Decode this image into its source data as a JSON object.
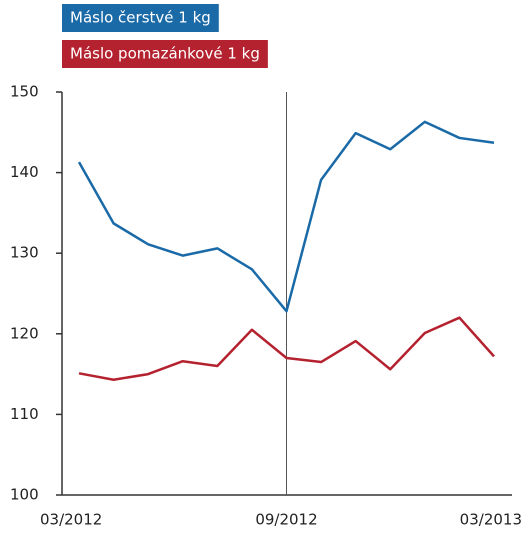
{
  "chart_data": {
    "type": "line",
    "categories": [
      "03/2012",
      null,
      null,
      null,
      null,
      null,
      "09/2012",
      null,
      null,
      null,
      null,
      null,
      "03/2013"
    ],
    "series": [
      {
        "name": "Máslo čerstvé 1 kg",
        "color": "#1a6aa8",
        "values": [
          141.3,
          133.7,
          131.1,
          129.7,
          130.6,
          128.0,
          122.8,
          139.1,
          144.9,
          142.9,
          146.3,
          144.3,
          143.7
        ]
      },
      {
        "name": "Máslo pomazánkové 1 kg",
        "color": "#b5222f",
        "values": [
          115.1,
          114.3,
          115.0,
          116.6,
          116.0,
          120.5,
          117.0,
          116.5,
          119.1,
          115.6,
          120.1,
          122.0,
          117.2
        ]
      }
    ],
    "ylim": [
      100,
      150
    ],
    "yticks": [
      100,
      110,
      120,
      130,
      140,
      150
    ]
  }
}
